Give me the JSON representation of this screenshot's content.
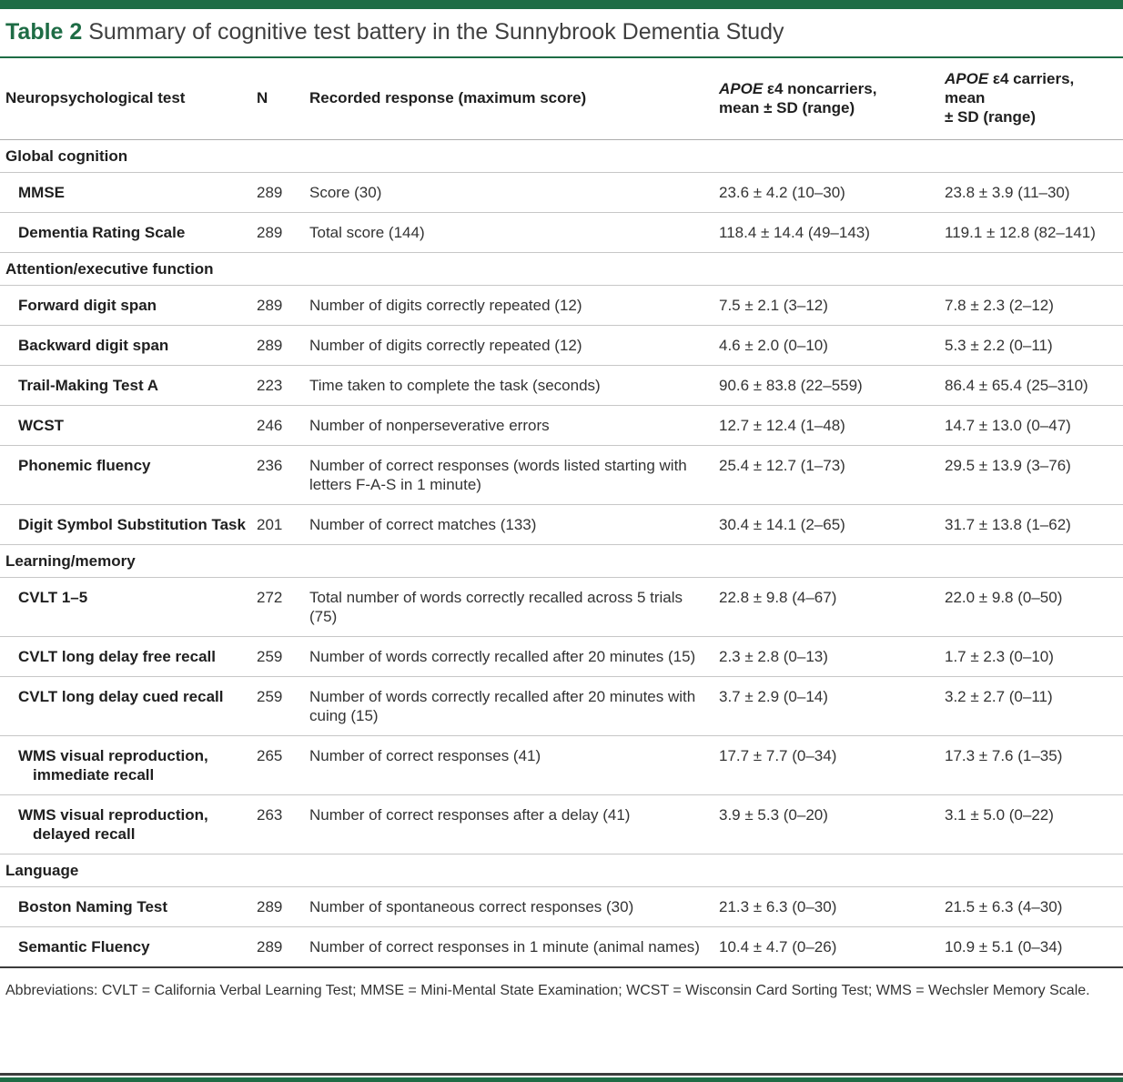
{
  "page": {
    "accent_green": "#1E6C45",
    "label": "Table 2",
    "title": "Summary of cognitive test battery in the Sunnybrook Dementia Study"
  },
  "header": {
    "col_test": "Neuropsychological test",
    "col_n": "N",
    "col_response": "Recorded response (maximum score)",
    "col_noncarriers": {
      "gene": "APOE",
      "line1_rest": " ε4 noncarriers,",
      "line2": "mean ± SD (range)"
    },
    "col_carriers": {
      "gene": "APOE",
      "line1_rest": " ε4 carriers, mean",
      "line2": "± SD (range)"
    }
  },
  "sections": [
    {
      "name": "Global cognition",
      "rows": [
        {
          "test": "MMSE",
          "n": "289",
          "response": "Score (30)",
          "noncarriers": "23.6 ± 4.2 (10–30)",
          "carriers": "23.8 ± 3.9 (11–30)"
        },
        {
          "test": "Dementia Rating Scale",
          "n": "289",
          "response": "Total score (144)",
          "noncarriers": "118.4 ± 14.4 (49–143)",
          "carriers": "119.1 ± 12.8 (82–141)"
        }
      ]
    },
    {
      "name": "Attention/executive function",
      "rows": [
        {
          "test": "Forward digit span",
          "n": "289",
          "response": "Number of digits correctly repeated (12)",
          "noncarriers": "7.5 ± 2.1 (3–12)",
          "carriers": "7.8 ± 2.3 (2–12)"
        },
        {
          "test": "Backward digit span",
          "n": "289",
          "response": "Number of digits correctly repeated (12)",
          "noncarriers": "4.6 ± 2.0 (0–10)",
          "carriers": "5.3 ± 2.2 (0–11)"
        },
        {
          "test": "Trail-Making Test A",
          "n": "223",
          "response": "Time taken to complete the task (seconds)",
          "noncarriers": "90.6 ± 83.8 (22–559)",
          "carriers": "86.4 ± 65.4 (25–310)"
        },
        {
          "test": "WCST",
          "n": "246",
          "response": "Number of nonperseverative errors",
          "noncarriers": "12.7 ± 12.4 (1–48)",
          "carriers": "14.7 ± 13.0 (0–47)"
        },
        {
          "test": "Phonemic fluency",
          "n": "236",
          "response": "Number of correct responses (words listed starting with letters F-A-S in 1 minute)",
          "noncarriers": "25.4 ± 12.7 (1–73)",
          "carriers": "29.5 ± 13.9 (3–76)"
        },
        {
          "test": "Digit Symbol Substitution Task",
          "n": "201",
          "response": "Number of correct matches (133)",
          "noncarriers": "30.4 ± 14.1 (2–65)",
          "carriers": "31.7 ± 13.8 (1–62)"
        }
      ]
    },
    {
      "name": "Learning/memory",
      "rows": [
        {
          "test": "CVLT 1–5",
          "n": "272",
          "response": "Total number of words correctly recalled across 5 trials (75)",
          "noncarriers": "22.8 ± 9.8 (4–67)",
          "carriers": "22.0 ± 9.8 (0–50)"
        },
        {
          "test": "CVLT long delay free recall",
          "n": "259",
          "response": "Number of words correctly recalled after 20 minutes (15)",
          "noncarriers": "2.3 ± 2.8 (0–13)",
          "carriers": "1.7 ± 2.3 (0–10)"
        },
        {
          "test": "CVLT long delay cued recall",
          "n": "259",
          "response": "Number of words correctly recalled after 20 minutes with cuing (15)",
          "noncarriers": "3.7 ± 2.9 (0–14)",
          "carriers": "3.2 ± 2.7 (0–11)"
        },
        {
          "test": "WMS visual reproduction, immediate recall",
          "n": "265",
          "response": "Number of correct responses (41)",
          "noncarriers": "17.7 ± 7.7 (0–34)",
          "carriers": "17.3 ± 7.6 (1–35)"
        },
        {
          "test": "WMS visual reproduction, delayed recall",
          "n": "263",
          "response": "Number of correct responses after a delay (41)",
          "noncarriers": "3.9 ± 5.3 (0–20)",
          "carriers": "3.1 ± 5.0 (0–22)"
        }
      ]
    },
    {
      "name": "Language",
      "rows": [
        {
          "test": "Boston Naming Test",
          "n": "289",
          "response": "Number of spontaneous correct responses (30)",
          "noncarriers": "21.3 ± 6.3 (0–30)",
          "carriers": "21.5 ± 6.3 (4–30)"
        },
        {
          "test": "Semantic Fluency",
          "n": "289",
          "response": "Number of correct responses in 1 minute (animal names)",
          "noncarriers": "10.4 ± 4.7 (0–26)",
          "carriers": "10.9 ± 5.1 (0–34)"
        }
      ]
    }
  ],
  "footnote": "Abbreviations: CVLT = California Verbal Learning Test; MMSE = Mini-Mental State Examination; WCST = Wisconsin Card Sorting Test; WMS = Wechsler Memory Scale."
}
